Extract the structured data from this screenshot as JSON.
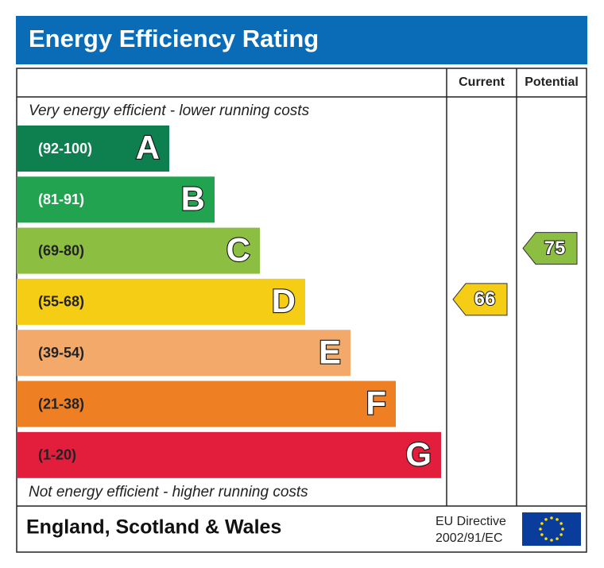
{
  "title": "Energy Efficiency Rating",
  "columns": [
    "Current",
    "Potential"
  ],
  "top_note": "Very energy efficient - lower running costs",
  "bands": [
    {
      "range": "(92-100)",
      "letter": "A",
      "color": "#0e8050",
      "label_color": "#ffffff"
    },
    {
      "range": "(81-91)",
      "letter": "B",
      "color": "#21a350",
      "label_color": "#ffffff"
    },
    {
      "range": "(69-80)",
      "letter": "C",
      "color": "#8cbe42",
      "label_color": "#222222"
    },
    {
      "range": "(55-68)",
      "letter": "D",
      "color": "#f6cd15",
      "label_color": "#222222"
    },
    {
      "range": "(39-54)",
      "letter": "E",
      "color": "#f2a96a",
      "label_color": "#222222"
    },
    {
      "range": "(21-38)",
      "letter": "F",
      "color": "#ee7f22",
      "label_color": "#222222"
    },
    {
      "range": "(1-20)",
      "letter": "G",
      "color": "#e31d3c",
      "label_color": "#222222"
    }
  ],
  "bottom_note": "Not energy efficient - higher running costs",
  "current": 66,
  "potential": 75,
  "region": "England, Scotland & Wales",
  "directive": [
    "EU Directive",
    "2002/91/EC"
  ]
}
